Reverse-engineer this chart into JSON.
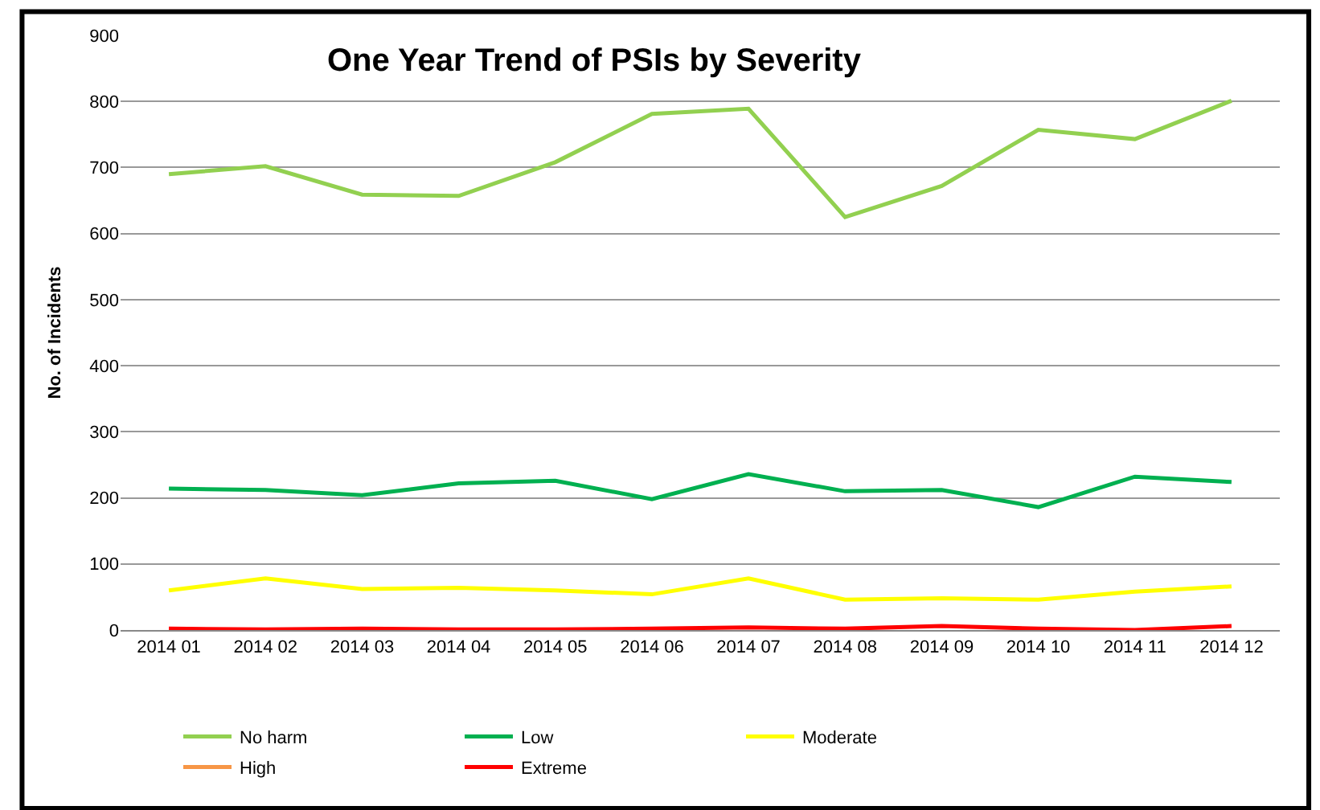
{
  "chart_data": {
    "type": "line",
    "title": "One Year Trend of PSIs by Severity",
    "ylabel": "No. of Incidents",
    "categories": [
      "2014 01",
      "2014 02",
      "2014 03",
      "2014 04",
      "2014 05",
      "2014 06",
      "2014 07",
      "2014 08",
      "2014 09",
      "2014 10",
      "2014 11",
      "2014 12"
    ],
    "series": [
      {
        "name": "No harm",
        "color": "#92d050",
        "values": [
          690,
          702,
          659,
          657,
          708,
          781,
          789,
          625,
          672,
          757,
          743,
          801
        ]
      },
      {
        "name": "Low",
        "color": "#00b050",
        "values": [
          214,
          212,
          204,
          222,
          226,
          198,
          236,
          210,
          212,
          186,
          232,
          224
        ]
      },
      {
        "name": "Moderate",
        "color": "#ffff00",
        "values": [
          60,
          78,
          62,
          64,
          60,
          54,
          78,
          46,
          48,
          46,
          58,
          66
        ]
      },
      {
        "name": "High",
        "color": "#f79646",
        "values": [
          null,
          null,
          null,
          null,
          null,
          null,
          null,
          null,
          null,
          null,
          null,
          null
        ]
      },
      {
        "name": "Extreme",
        "color": "#ff0000",
        "values": [
          2,
          1,
          2,
          1,
          1,
          2,
          4,
          2,
          6,
          2,
          0,
          6
        ]
      }
    ],
    "ylim": [
      0,
      900
    ],
    "yticks": [
      0,
      100,
      200,
      300,
      400,
      500,
      600,
      700,
      800,
      900
    ],
    "grid": "y",
    "legend": "bottom",
    "marker": "none",
    "line_style": "solid"
  }
}
